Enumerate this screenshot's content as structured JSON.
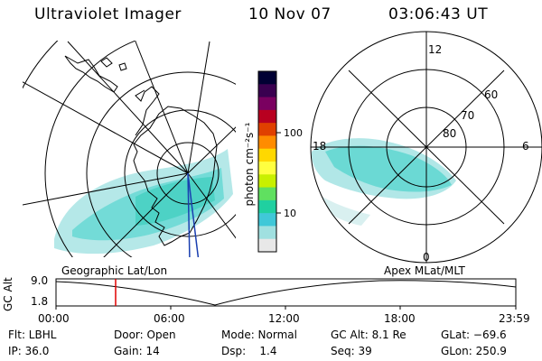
{
  "header": {
    "title": "Ultraviolet Imager",
    "date": "10 Nov 07",
    "time": "03:06:43 UT"
  },
  "colorbar": {
    "unit_label": "photon cm⁻²s⁻¹",
    "ticks": [
      "100",
      "10"
    ],
    "colors": [
      "#000033",
      "#3a0050",
      "#7a0060",
      "#b80020",
      "#e04000",
      "#ff8c00",
      "#ffd800",
      "#ffff40",
      "#c8f000",
      "#60e060",
      "#20d0a0",
      "#40c8d8",
      "#a0e0e0",
      "#e8e8e8"
    ]
  },
  "polar_plot": {
    "mlt_labels": [
      "12",
      "18",
      "6",
      "0"
    ],
    "mlat_labels": [
      "60",
      "70",
      "80"
    ]
  },
  "orbit_panel": {
    "left_title": "Geographic Lat/Lon",
    "right_title": "Apex  MLat/MLT",
    "y_axis_label": "GC Alt",
    "y_ticks": [
      "9.0",
      "1.8"
    ],
    "x_ticks": [
      "00:00",
      "06:00",
      "12:00",
      "18:00",
      "23:59"
    ],
    "current_time_hours": 3.11
  },
  "info_rows": [
    [
      "Flt: LBHL",
      "Door: Open",
      "Mode: Normal",
      "GC Alt: 8.1 Re",
      "GLat: −69.6"
    ],
    [
      "IP: 36.0",
      "Gain: 14",
      "Dsp:    1.4",
      "Seq: 39",
      "GLon: 250.9"
    ]
  ]
}
